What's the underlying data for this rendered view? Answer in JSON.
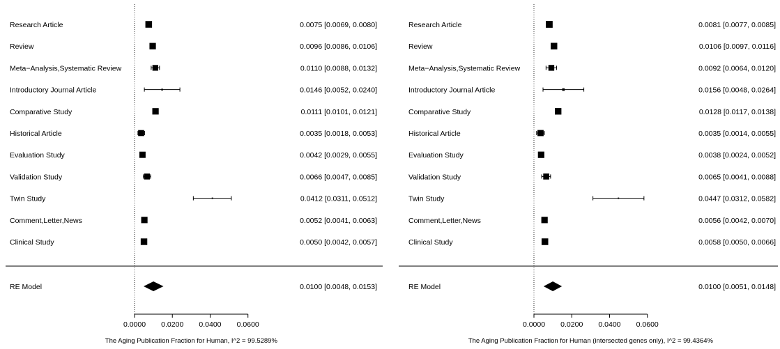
{
  "chart_data": [
    {
      "type": "forest",
      "xlabel": "The Aging Publication Fraction for Human, I^2 = 99.5289%",
      "ticks": [
        "0.0000",
        "0.0200",
        "0.0400",
        "0.0600"
      ],
      "xlim": [
        0,
        0.06
      ],
      "reference_line": 0,
      "studies": [
        {
          "label": "Research Article",
          "est": 0.0075,
          "lo": 0.0069,
          "hi": 0.008,
          "text": "0.0075 [0.0069, 0.0080]"
        },
        {
          "label": "Review",
          "est": 0.0096,
          "lo": 0.0086,
          "hi": 0.0106,
          "text": "0.0096 [0.0086, 0.0106]"
        },
        {
          "label": "Meta−Analysis,Systematic Review",
          "est": 0.011,
          "lo": 0.0088,
          "hi": 0.0132,
          "text": "0.0110 [0.0088, 0.0132]"
        },
        {
          "label": "Introductory Journal Article",
          "est": 0.0146,
          "lo": 0.0052,
          "hi": 0.024,
          "text": "0.0146 [0.0052, 0.0240]"
        },
        {
          "label": "Comparative Study",
          "est": 0.0111,
          "lo": 0.0101,
          "hi": 0.0121,
          "text": "0.0111 [0.0101, 0.0121]"
        },
        {
          "label": "Historical Article",
          "est": 0.0035,
          "lo": 0.0018,
          "hi": 0.0053,
          "text": "0.0035 [0.0018, 0.0053]"
        },
        {
          "label": "Evaluation Study",
          "est": 0.0042,
          "lo": 0.0029,
          "hi": 0.0055,
          "text": "0.0042 [0.0029, 0.0055]"
        },
        {
          "label": "Validation Study",
          "est": 0.0066,
          "lo": 0.0047,
          "hi": 0.0085,
          "text": "0.0066 [0.0047, 0.0085]"
        },
        {
          "label": "Twin Study",
          "est": 0.0412,
          "lo": 0.0311,
          "hi": 0.0512,
          "text": "0.0412 [0.0311, 0.0512]"
        },
        {
          "label": "Comment,Letter,News",
          "est": 0.0052,
          "lo": 0.0041,
          "hi": 0.0063,
          "text": "0.0052 [0.0041, 0.0063]"
        },
        {
          "label": "Clinical Study",
          "est": 0.005,
          "lo": 0.0042,
          "hi": 0.0057,
          "text": "0.0050 [0.0042, 0.0057]"
        }
      ],
      "summary": {
        "label": "RE Model",
        "est": 0.01,
        "lo": 0.0048,
        "hi": 0.0153,
        "text": "0.0100 [0.0048, 0.0153]"
      }
    },
    {
      "type": "forest",
      "xlabel": "The Aging Publication Fraction for Human (intersected genes only), I^2 = 99.4364%",
      "ticks": [
        "0.0000",
        "0.0200",
        "0.0400",
        "0.0600"
      ],
      "xlim": [
        0,
        0.06
      ],
      "reference_line": 0,
      "studies": [
        {
          "label": "Research Article",
          "est": 0.0081,
          "lo": 0.0077,
          "hi": 0.0085,
          "text": "0.0081 [0.0077, 0.0085]"
        },
        {
          "label": "Review",
          "est": 0.0106,
          "lo": 0.0097,
          "hi": 0.0116,
          "text": "0.0106 [0.0097, 0.0116]"
        },
        {
          "label": "Meta−Analysis,Systematic Review",
          "est": 0.0092,
          "lo": 0.0064,
          "hi": 0.012,
          "text": "0.0092 [0.0064, 0.0120]"
        },
        {
          "label": "Introductory Journal Article",
          "est": 0.0156,
          "lo": 0.0048,
          "hi": 0.0264,
          "text": "0.0156 [0.0048, 0.0264]"
        },
        {
          "label": "Comparative Study",
          "est": 0.0128,
          "lo": 0.0117,
          "hi": 0.0138,
          "text": "0.0128 [0.0117, 0.0138]"
        },
        {
          "label": "Historical Article",
          "est": 0.0035,
          "lo": 0.0014,
          "hi": 0.0055,
          "text": "0.0035 [0.0014, 0.0055]"
        },
        {
          "label": "Evaluation Study",
          "est": 0.0038,
          "lo": 0.0024,
          "hi": 0.0052,
          "text": "0.0038 [0.0024, 0.0052]"
        },
        {
          "label": "Validation Study",
          "est": 0.0065,
          "lo": 0.0041,
          "hi": 0.0088,
          "text": "0.0065 [0.0041, 0.0088]"
        },
        {
          "label": "Twin Study",
          "est": 0.0447,
          "lo": 0.0312,
          "hi": 0.0582,
          "text": "0.0447 [0.0312, 0.0582]"
        },
        {
          "label": "Comment,Letter,News",
          "est": 0.0056,
          "lo": 0.0042,
          "hi": 0.007,
          "text": "0.0056 [0.0042, 0.0070]"
        },
        {
          "label": "Clinical Study",
          "est": 0.0058,
          "lo": 0.005,
          "hi": 0.0066,
          "text": "0.0058 [0.0050, 0.0066]"
        }
      ],
      "summary": {
        "label": "RE Model",
        "est": 0.01,
        "lo": 0.0051,
        "hi": 0.0148,
        "text": "0.0100 [0.0051, 0.0148]"
      }
    }
  ]
}
